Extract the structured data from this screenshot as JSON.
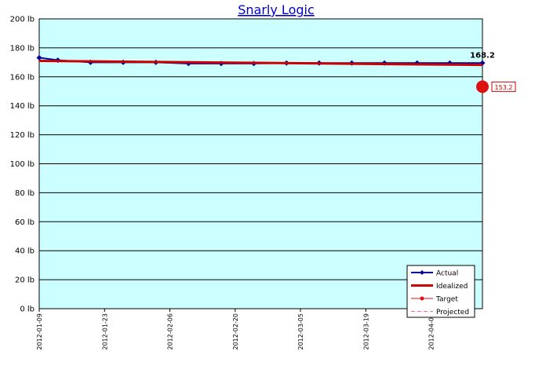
{
  "chart_data": {
    "type": "line",
    "title": "Snarly Logic",
    "xlim": [
      "2012-01-09",
      "2012-04-13"
    ],
    "xticks": [
      "2012-01-09",
      "2012-01-23",
      "2012-02-06",
      "2012-02-20",
      "2012-03-05",
      "2012-03-19",
      "2012-04-02"
    ],
    "ylim": [
      0,
      200
    ],
    "yticks": [
      {
        "value": 0,
        "label": "0 lb"
      },
      {
        "value": 20,
        "label": "20 lb"
      },
      {
        "value": 40,
        "label": "40 lb"
      },
      {
        "value": 60,
        "label": "60 lb"
      },
      {
        "value": 80,
        "label": "80 lb"
      },
      {
        "value": 100,
        "label": "100 lb"
      },
      {
        "value": 120,
        "label": "120 lb"
      },
      {
        "value": 140,
        "label": "140 lb"
      },
      {
        "value": 160,
        "label": "160 lb"
      },
      {
        "value": 180,
        "label": "180 lb"
      },
      {
        "value": 200,
        "label": "200 lb"
      }
    ],
    "grid": true,
    "legend": "lower right",
    "background": "#ccffff",
    "series": [
      {
        "name": "Actual",
        "color": "#0000a0",
        "x": [
          "2012-01-09",
          "2012-01-13",
          "2012-01-20",
          "2012-01-27",
          "2012-02-03",
          "2012-02-10",
          "2012-02-17",
          "2012-02-24",
          "2012-03-02",
          "2012-03-09",
          "2012-03-16",
          "2012-03-23",
          "2012-03-30",
          "2012-04-06",
          "2012-04-13"
        ],
        "values": [
          173.2,
          171.5,
          170,
          170,
          170,
          169.2,
          169.2,
          169.2,
          169.5,
          169.5,
          169.5,
          169.5,
          169.5,
          169.5,
          169.5
        ]
      },
      {
        "name": "Idealized",
        "color": "#cc0000",
        "x": [
          "2012-01-09",
          "2012-04-13"
        ],
        "values": [
          171,
          168.2
        ]
      },
      {
        "name": "Target",
        "color": "#dd1111",
        "x": [
          "2012-04-13"
        ],
        "values": [
          153.2
        ]
      },
      {
        "name": "Projected",
        "color": "#ff66aa",
        "x": [],
        "values": []
      }
    ]
  }
}
